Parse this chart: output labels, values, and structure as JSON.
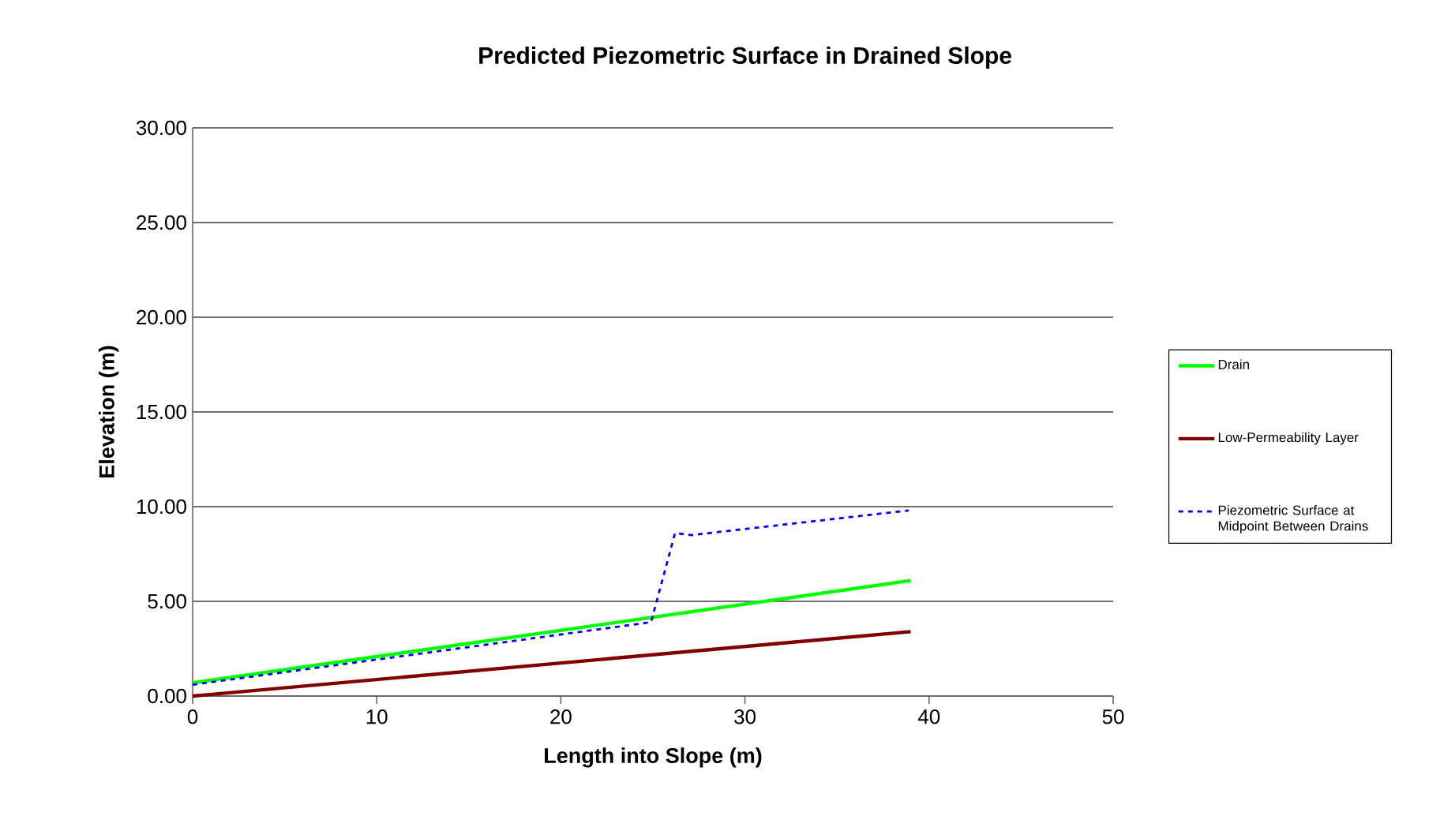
{
  "chart_data": {
    "type": "line",
    "title": "Predicted Piezometric Surface in Drained Slope",
    "xlabel": "Length into Slope (m)",
    "ylabel": "Elevation (m)",
    "xlim": [
      0,
      50
    ],
    "xticks": [
      0,
      10,
      20,
      30,
      40,
      50
    ],
    "ylim": [
      0,
      30
    ],
    "yticks": [
      {
        "value": 0,
        "label": "0.00"
      },
      {
        "value": 5,
        "label": "5.00"
      },
      {
        "value": 10,
        "label": "10.00"
      },
      {
        "value": 15,
        "label": "15.00"
      },
      {
        "value": 20,
        "label": "20.00"
      },
      {
        "value": 25,
        "label": "25.00"
      },
      {
        "value": 30,
        "label": "30.00"
      }
    ],
    "grid": "y",
    "legend": "right",
    "marker": "none",
    "series": [
      {
        "name": "Drain",
        "color": "#00ff00",
        "line_style": "solid",
        "x": [
          0,
          39
        ],
        "values": [
          0.7,
          6.1
        ]
      },
      {
        "name": "Low-Permeability Layer",
        "color": "#800000",
        "line_style": "solid",
        "x": [
          0,
          39
        ],
        "values": [
          0,
          3.4
        ]
      },
      {
        "name": "Piezometric Surface at Midpoint Between Drains",
        "color": "#0000ff",
        "line_style": "dashed",
        "x": [
          0,
          24.9,
          26.2,
          27.1,
          38.9
        ],
        "values": [
          0.6,
          3.9,
          8.6,
          8.5,
          9.8
        ]
      }
    ]
  }
}
